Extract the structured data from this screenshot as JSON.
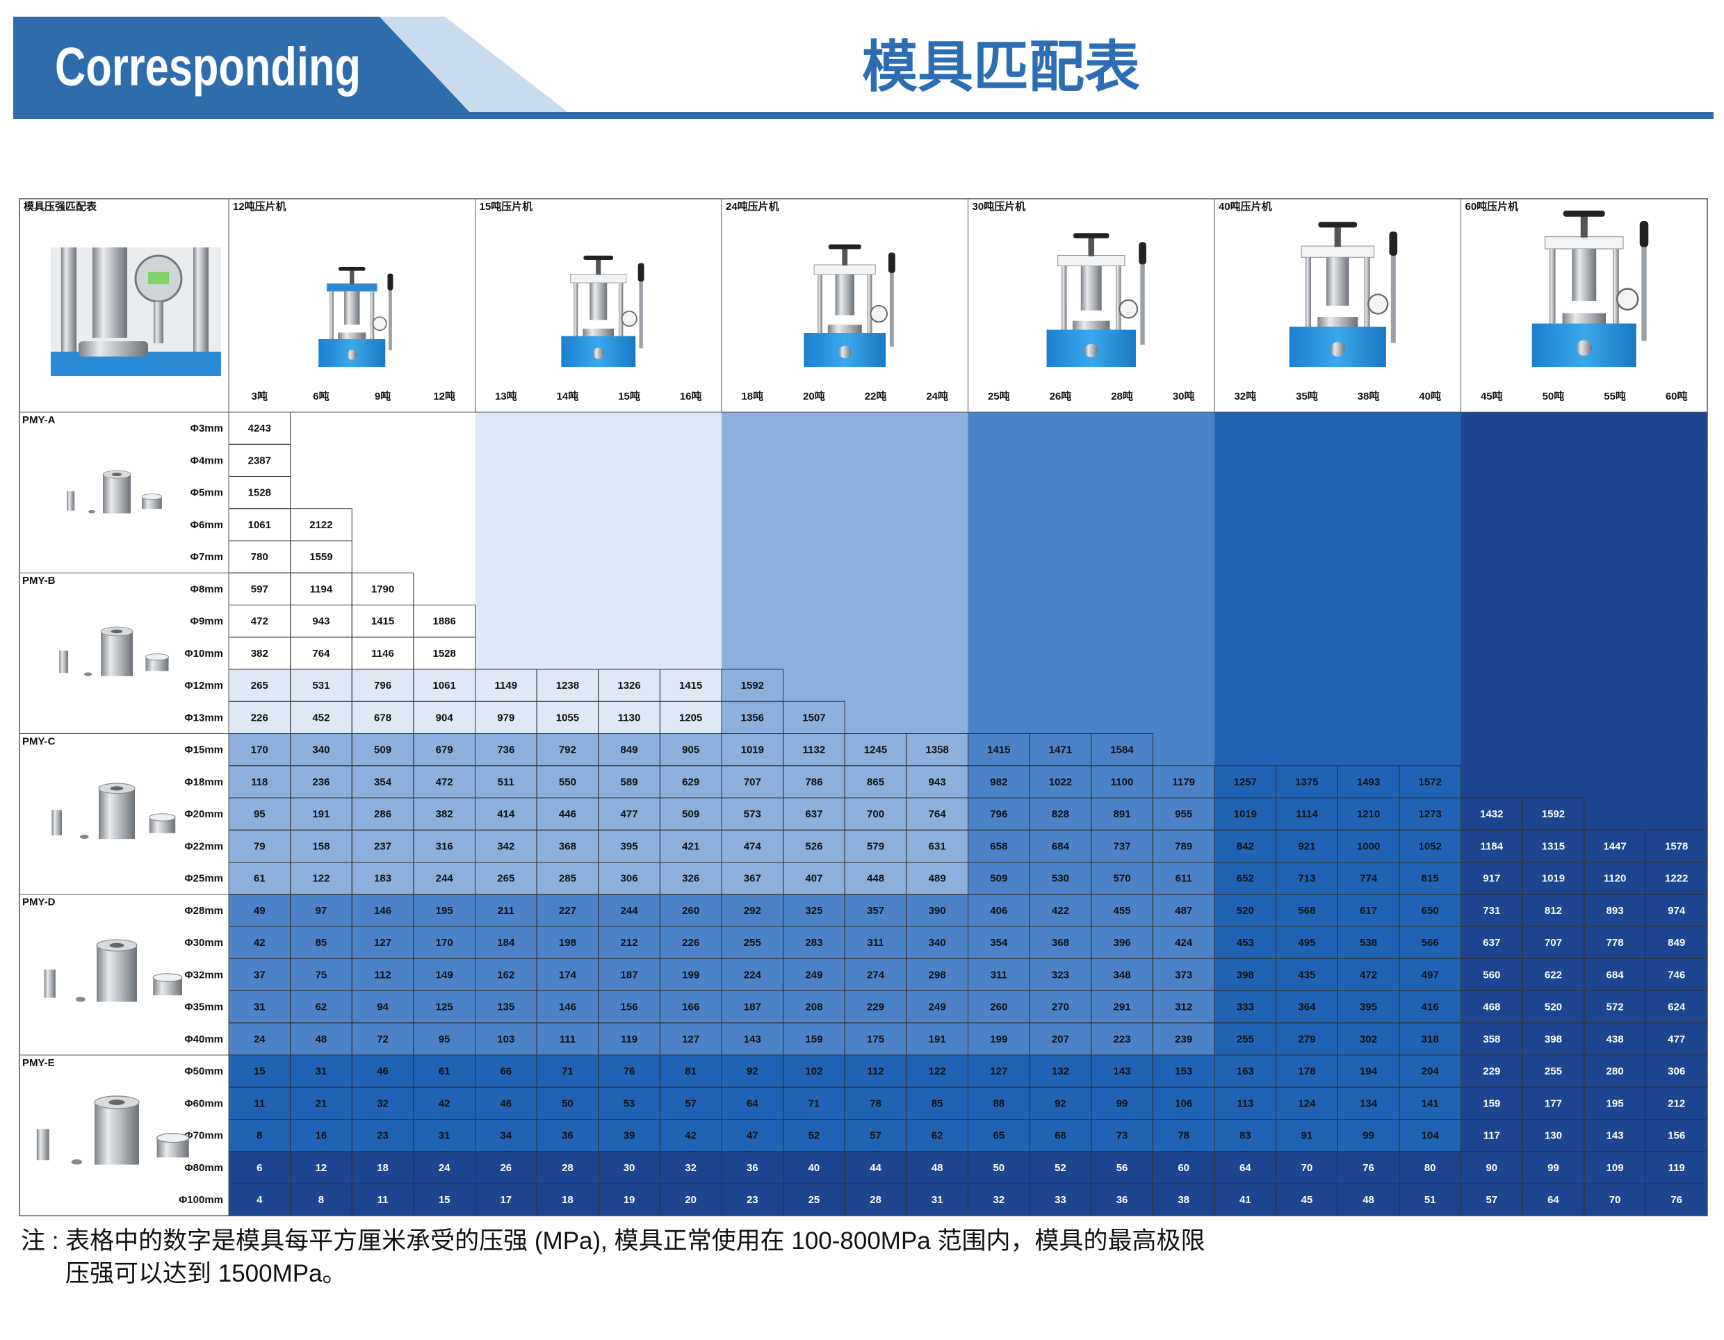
{
  "header": {
    "badge": "Corresponding",
    "title": "模具匹配表"
  },
  "table": {
    "corner": "模具压强匹配表",
    "machines": [
      {
        "name": "12吨压片机",
        "tonnages": [
          "3吨",
          "6吨",
          "9吨",
          "12吨"
        ]
      },
      {
        "name": "15吨压片机",
        "tonnages": [
          "13吨",
          "14吨",
          "15吨",
          "16吨"
        ]
      },
      {
        "name": "24吨压片机",
        "tonnages": [
          "18吨",
          "20吨",
          "22吨",
          "24吨"
        ]
      },
      {
        "name": "30吨压片机",
        "tonnages": [
          "25吨",
          "26吨",
          "28吨",
          "30吨"
        ]
      },
      {
        "name": "40吨压片机",
        "tonnages": [
          "32吨",
          "35吨",
          "38吨",
          "40吨"
        ]
      },
      {
        "name": "60吨压片机",
        "tonnages": [
          "45吨",
          "50吨",
          "55吨",
          "60吨"
        ]
      }
    ],
    "mold_groups": [
      {
        "name": "PMY-A",
        "sizes": [
          "Φ3mm",
          "Φ4mm",
          "Φ5mm",
          "Φ6mm",
          "Φ7mm"
        ]
      },
      {
        "name": "PMY-B",
        "sizes": [
          "Φ8mm",
          "Φ9mm",
          "Φ10mm",
          "Φ12mm",
          "Φ13mm"
        ]
      },
      {
        "name": "PMY-C",
        "sizes": [
          "Φ15mm",
          "Φ18mm",
          "Φ20mm",
          "Φ22mm",
          "Φ25mm"
        ]
      },
      {
        "name": "PMY-D",
        "sizes": [
          "Φ28mm",
          "Φ30mm",
          "Φ32mm",
          "Φ35mm",
          "Φ40mm"
        ]
      },
      {
        "name": "PMY-E",
        "sizes": [
          "Φ50mm",
          "Φ60mm",
          "Φ70mm",
          "Φ80mm",
          "Φ100mm"
        ]
      }
    ],
    "rows": [
      [
        4243
      ],
      [
        2387
      ],
      [
        1528
      ],
      [
        1061,
        2122
      ],
      [
        780,
        1559
      ],
      [
        597,
        1194,
        1790
      ],
      [
        472,
        943,
        1415,
        1886
      ],
      [
        382,
        764,
        1146,
        1528
      ],
      [
        265,
        531,
        796,
        1061,
        1149,
        1238,
        1326,
        1415,
        1592
      ],
      [
        226,
        452,
        678,
        904,
        979,
        1055,
        1130,
        1205,
        1356,
        1507
      ],
      [
        170,
        340,
        509,
        679,
        736,
        792,
        849,
        905,
        1019,
        1132,
        1245,
        1358,
        1415,
        1471,
        1584
      ],
      [
        118,
        236,
        354,
        472,
        511,
        550,
        589,
        629,
        707,
        786,
        865,
        943,
        982,
        1022,
        1100,
        1179,
        1257,
        1375,
        1493,
        1572
      ],
      [
        95,
        191,
        286,
        382,
        414,
        446,
        477,
        509,
        573,
        637,
        700,
        764,
        796,
        828,
        891,
        955,
        1019,
        1114,
        1210,
        1273,
        1432,
        1592
      ],
      [
        79,
        158,
        237,
        316,
        342,
        368,
        395,
        421,
        474,
        526,
        579,
        631,
        658,
        684,
        737,
        789,
        842,
        921,
        1000,
        1052,
        1184,
        1315,
        1447,
        1578
      ],
      [
        61,
        122,
        183,
        244,
        265,
        285,
        306,
        326,
        367,
        407,
        448,
        489,
        509,
        530,
        570,
        611,
        652,
        713,
        774,
        815,
        917,
        1019,
        1120,
        1222
      ],
      [
        49,
        97,
        146,
        195,
        211,
        227,
        244,
        260,
        292,
        325,
        357,
        390,
        406,
        422,
        455,
        487,
        520,
        568,
        617,
        650,
        731,
        812,
        893,
        974
      ],
      [
        42,
        85,
        127,
        170,
        184,
        198,
        212,
        226,
        255,
        283,
        311,
        340,
        354,
        368,
        396,
        424,
        453,
        495,
        538,
        566,
        637,
        707,
        778,
        849
      ],
      [
        37,
        75,
        112,
        149,
        162,
        174,
        187,
        199,
        224,
        249,
        274,
        298,
        311,
        323,
        348,
        373,
        398,
        435,
        472,
        497,
        560,
        622,
        684,
        746
      ],
      [
        31,
        62,
        94,
        125,
        135,
        146,
        156,
        166,
        187,
        208,
        229,
        249,
        260,
        270,
        291,
        312,
        333,
        364,
        395,
        416,
        468,
        520,
        572,
        624
      ],
      [
        24,
        48,
        72,
        95,
        103,
        111,
        119,
        127,
        143,
        159,
        175,
        191,
        199,
        207,
        223,
        239,
        255,
        279,
        302,
        318,
        358,
        398,
        438,
        477
      ],
      [
        15,
        31,
        46,
        61,
        66,
        71,
        76,
        81,
        92,
        102,
        112,
        122,
        127,
        132,
        143,
        153,
        163,
        178,
        194,
        204,
        229,
        255,
        280,
        306
      ],
      [
        11,
        21,
        32,
        42,
        46,
        50,
        53,
        57,
        64,
        71,
        78,
        85,
        88,
        92,
        99,
        106,
        113,
        124,
        134,
        141,
        159,
        177,
        195,
        212
      ],
      [
        8,
        16,
        23,
        31,
        34,
        36,
        39,
        42,
        47,
        52,
        57,
        62,
        65,
        68,
        73,
        78,
        83,
        91,
        99,
        104,
        117,
        130,
        143,
        156
      ],
      [
        6,
        12,
        18,
        24,
        26,
        28,
        30,
        32,
        36,
        40,
        44,
        48,
        50,
        52,
        56,
        60,
        64,
        70,
        76,
        80,
        90,
        99,
        109,
        119
      ],
      [
        4,
        8,
        11,
        15,
        17,
        18,
        19,
        20,
        23,
        25,
        28,
        31,
        32,
        33,
        36,
        38,
        41,
        45,
        48,
        51,
        57,
        64,
        70,
        76
      ]
    ]
  },
  "note": [
    "注 : 表格中的数字是模具每平方厘米承受的压强 (MPa), 模具正常使用在 100-800MPa 范围内，模具的最高极限",
    "压强可以达到 1500MPa。"
  ]
}
